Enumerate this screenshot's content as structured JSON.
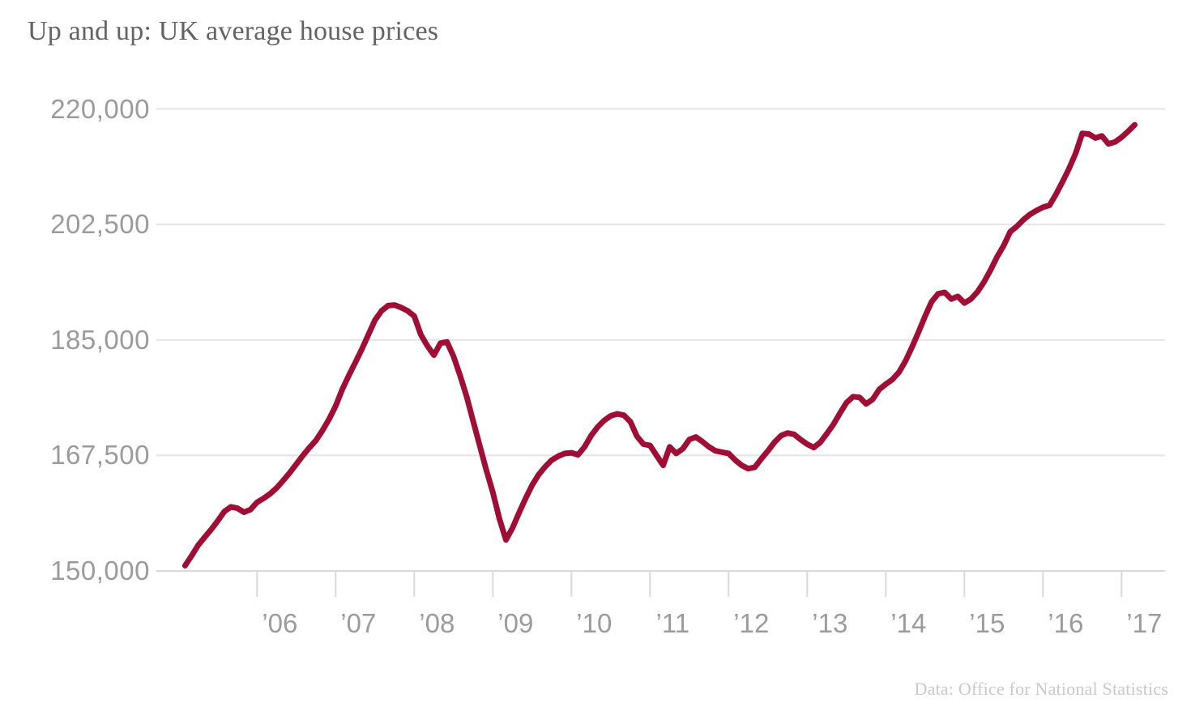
{
  "title": "Up and up: UK average house prices",
  "source": "Data: Office for National Statistics",
  "colors": {
    "line": "#a00e35",
    "grid": "#e4e4e4",
    "axis": "#d9d9d9",
    "title_text": "#636363",
    "axis_label_text": "#9b9b9b",
    "source_text": "#c9c9c9"
  },
  "chart_data": {
    "type": "line",
    "title": "Up and up: UK average house prices",
    "series_name": "UK average house price (GBP)",
    "frequency": "monthly",
    "x_start": "2005-02",
    "x_end": "2017-03",
    "ylim": [
      150000,
      220000
    ],
    "grid": "horizontal",
    "legend": "none",
    "y_ticks": [
      {
        "label": "220,000",
        "value": 220000
      },
      {
        "label": "202,500",
        "value": 202500
      },
      {
        "label": "185,000",
        "value": 185000
      },
      {
        "label": "167,500",
        "value": 167500
      },
      {
        "label": "150,000",
        "value": 150000
      }
    ],
    "x_ticks": [
      {
        "label": "’06",
        "year": 2006
      },
      {
        "label": "’07",
        "year": 2007
      },
      {
        "label": "’08",
        "year": 2008
      },
      {
        "label": "’09",
        "year": 2009
      },
      {
        "label": "’10",
        "year": 2010
      },
      {
        "label": "’11",
        "year": 2011
      },
      {
        "label": "’12",
        "year": 2012
      },
      {
        "label": "’13",
        "year": 2013
      },
      {
        "label": "’14",
        "year": 2014
      },
      {
        "label": "’15",
        "year": 2015
      },
      {
        "label": "’16",
        "year": 2016
      },
      {
        "label": "’17",
        "year": 2017
      }
    ],
    "values": [
      150800,
      152300,
      153900,
      155100,
      156300,
      157600,
      159000,
      159700,
      159500,
      158900,
      159300,
      160400,
      161000,
      161700,
      162600,
      163700,
      164900,
      166200,
      167500,
      168700,
      169800,
      171300,
      173000,
      175000,
      177500,
      179600,
      181600,
      183600,
      185800,
      188000,
      189400,
      190200,
      190300,
      189900,
      189400,
      188600,
      185800,
      184100,
      182700,
      184500,
      184700,
      182500,
      179600,
      176400,
      172700,
      169000,
      165300,
      161900,
      157900,
      154700,
      156500,
      158800,
      161000,
      163000,
      164600,
      165800,
      166800,
      167400,
      167800,
      167900,
      167600,
      168800,
      170500,
      171800,
      172800,
      173500,
      173800,
      173600,
      172600,
      170400,
      169200,
      169000,
      167500,
      166000,
      168800,
      167800,
      168500,
      169900,
      170300,
      169600,
      168800,
      168200,
      168000,
      167800,
      166800,
      166000,
      165500,
      165700,
      167000,
      168200,
      169500,
      170500,
      170900,
      170700,
      169900,
      169200,
      168700,
      169500,
      170800,
      172200,
      173900,
      175500,
      176400,
      176300,
      175300,
      176000,
      177500,
      178300,
      179000,
      180100,
      181800,
      183900,
      186200,
      188600,
      190800,
      192000,
      192200,
      191200,
      191600,
      190600,
      191200,
      192300,
      193800,
      195600,
      197600,
      199300,
      201400,
      202200,
      203200,
      204000,
      204600,
      205100,
      205400,
      207100,
      209000,
      211000,
      213300,
      216300,
      216200,
      215600,
      215900,
      214700,
      215000,
      215700,
      216600,
      217600
    ]
  }
}
